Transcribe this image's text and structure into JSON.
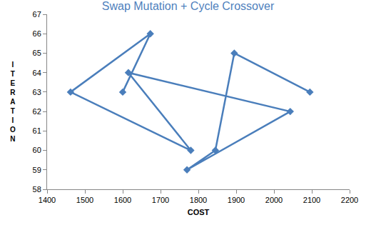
{
  "chart_data": {
    "type": "line",
    "title": "Swap Mutation + Cycle Crossover",
    "xlabel": "COST",
    "ylabel": "ITERATION",
    "x": [
      1600,
      1673,
      1462,
      1780,
      1615,
      2043,
      1770,
      1845,
      1895,
      2095
    ],
    "values": [
      63,
      66,
      63,
      60,
      64,
      62,
      59,
      60,
      65,
      63
    ],
    "color": "#4a7ebb",
    "marker": "diamond",
    "xlim": [
      1400,
      2200
    ],
    "xticks": [
      1400,
      1500,
      1600,
      1700,
      1800,
      1900,
      2000,
      2100,
      2200
    ],
    "ylim": [
      58,
      67
    ],
    "yticks": [
      58,
      59,
      60,
      61,
      62,
      63,
      64,
      65,
      66,
      67
    ],
    "grid": false
  }
}
